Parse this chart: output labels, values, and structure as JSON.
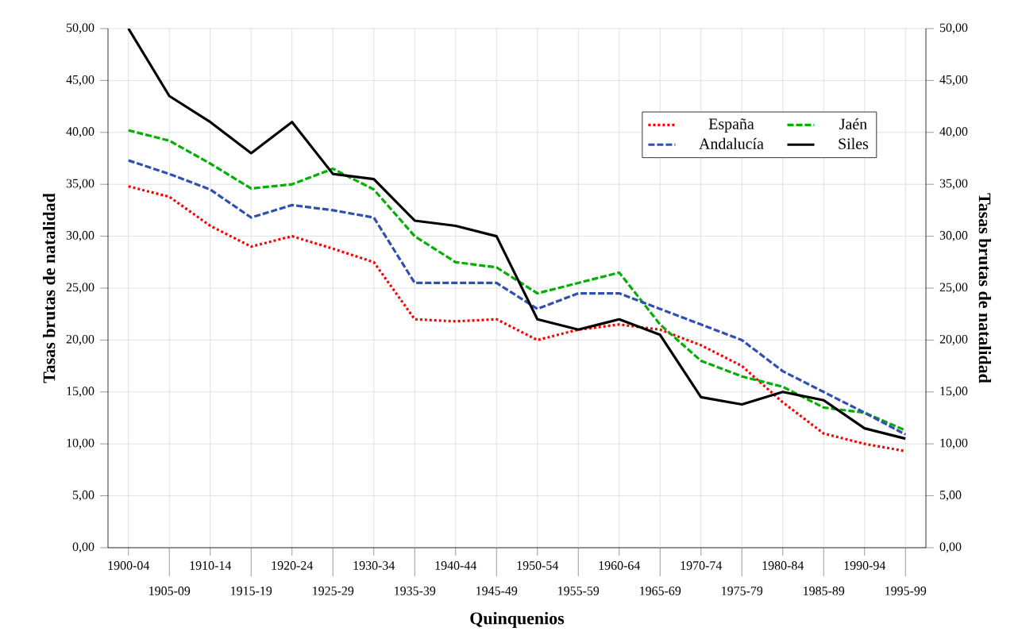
{
  "chart_data": {
    "type": "line",
    "xlabel": "Quinquenios",
    "ylabel": "Tasas brutas de natalidad",
    "y2label": "Tasas brutas de natalidad",
    "categories": [
      "1900-04",
      "1905-09",
      "1910-14",
      "1915-19",
      "1920-24",
      "1925-29",
      "1930-34",
      "1935-39",
      "1940-44",
      "1945-49",
      "1950-54",
      "1955-59",
      "1960-64",
      "1965-69",
      "1970-74",
      "1975-79",
      "1980-84",
      "1985-89",
      "1990-94",
      "1995-99"
    ],
    "series": [
      {
        "name": "España",
        "color": "#ff0000",
        "line_style": "dotted",
        "values": [
          34.8,
          33.8,
          31,
          29,
          30,
          28.8,
          27.5,
          22,
          21.8,
          22,
          20,
          21,
          21.5,
          21,
          19.5,
          17.5,
          14,
          11,
          10,
          9.3
        ]
      },
      {
        "name": "Jaén",
        "color": "#00b000",
        "line_style": "dashed",
        "values": [
          40.2,
          39.2,
          37,
          34.6,
          35,
          36.5,
          34.5,
          30,
          27.5,
          27,
          24.5,
          25.5,
          26.5,
          21.5,
          18,
          16.5,
          15.5,
          13.5,
          13,
          11.3
        ]
      },
      {
        "name": "Andalucía",
        "color": "#3050b0",
        "line_style": "dashed",
        "values": [
          37.3,
          36,
          34.5,
          31.8,
          33,
          32.5,
          31.8,
          25.5,
          25.5,
          25.5,
          23,
          24.5,
          24.5,
          23,
          21.5,
          20,
          17,
          15,
          13,
          10.9
        ]
      },
      {
        "name": "Siles",
        "color": "#000000",
        "line_style": "solid",
        "values": [
          50,
          43.5,
          41,
          38,
          41,
          36,
          35.5,
          31.5,
          31,
          30,
          22,
          21,
          22,
          20.5,
          14.5,
          13.8,
          15,
          14.2,
          11.5,
          10.5
        ]
      }
    ],
    "ylim": [
      0,
      50
    ],
    "yticks": [
      {
        "value": 0,
        "label": "0,00"
      },
      {
        "value": 5,
        "label": "5,00"
      },
      {
        "value": 10,
        "label": "10,00"
      },
      {
        "value": 15,
        "label": "15,00"
      },
      {
        "value": 20,
        "label": "20,00"
      },
      {
        "value": 25,
        "label": "25,00"
      },
      {
        "value": 30,
        "label": "30,00"
      },
      {
        "value": 35,
        "label": "35,00"
      },
      {
        "value": 40,
        "label": "40,00"
      },
      {
        "value": 45,
        "label": "45,00"
      },
      {
        "value": 50,
        "label": "50,00"
      }
    ],
    "y2lim": [
      0,
      50
    ],
    "y2ticks": [
      {
        "value": 0,
        "label": "0,00"
      },
      {
        "value": 5,
        "label": "5,00"
      },
      {
        "value": 10,
        "label": "10,00"
      },
      {
        "value": 15,
        "label": "15,00"
      },
      {
        "value": 20,
        "label": "20,00"
      },
      {
        "value": 25,
        "label": "25,00"
      },
      {
        "value": 30,
        "label": "30,00"
      },
      {
        "value": 35,
        "label": "35,00"
      },
      {
        "value": 40,
        "label": "40,00"
      },
      {
        "value": 45,
        "label": "45,00"
      },
      {
        "value": 50,
        "label": "50,00"
      }
    ],
    "grid": true,
    "legend": "top right",
    "marker": "none"
  }
}
